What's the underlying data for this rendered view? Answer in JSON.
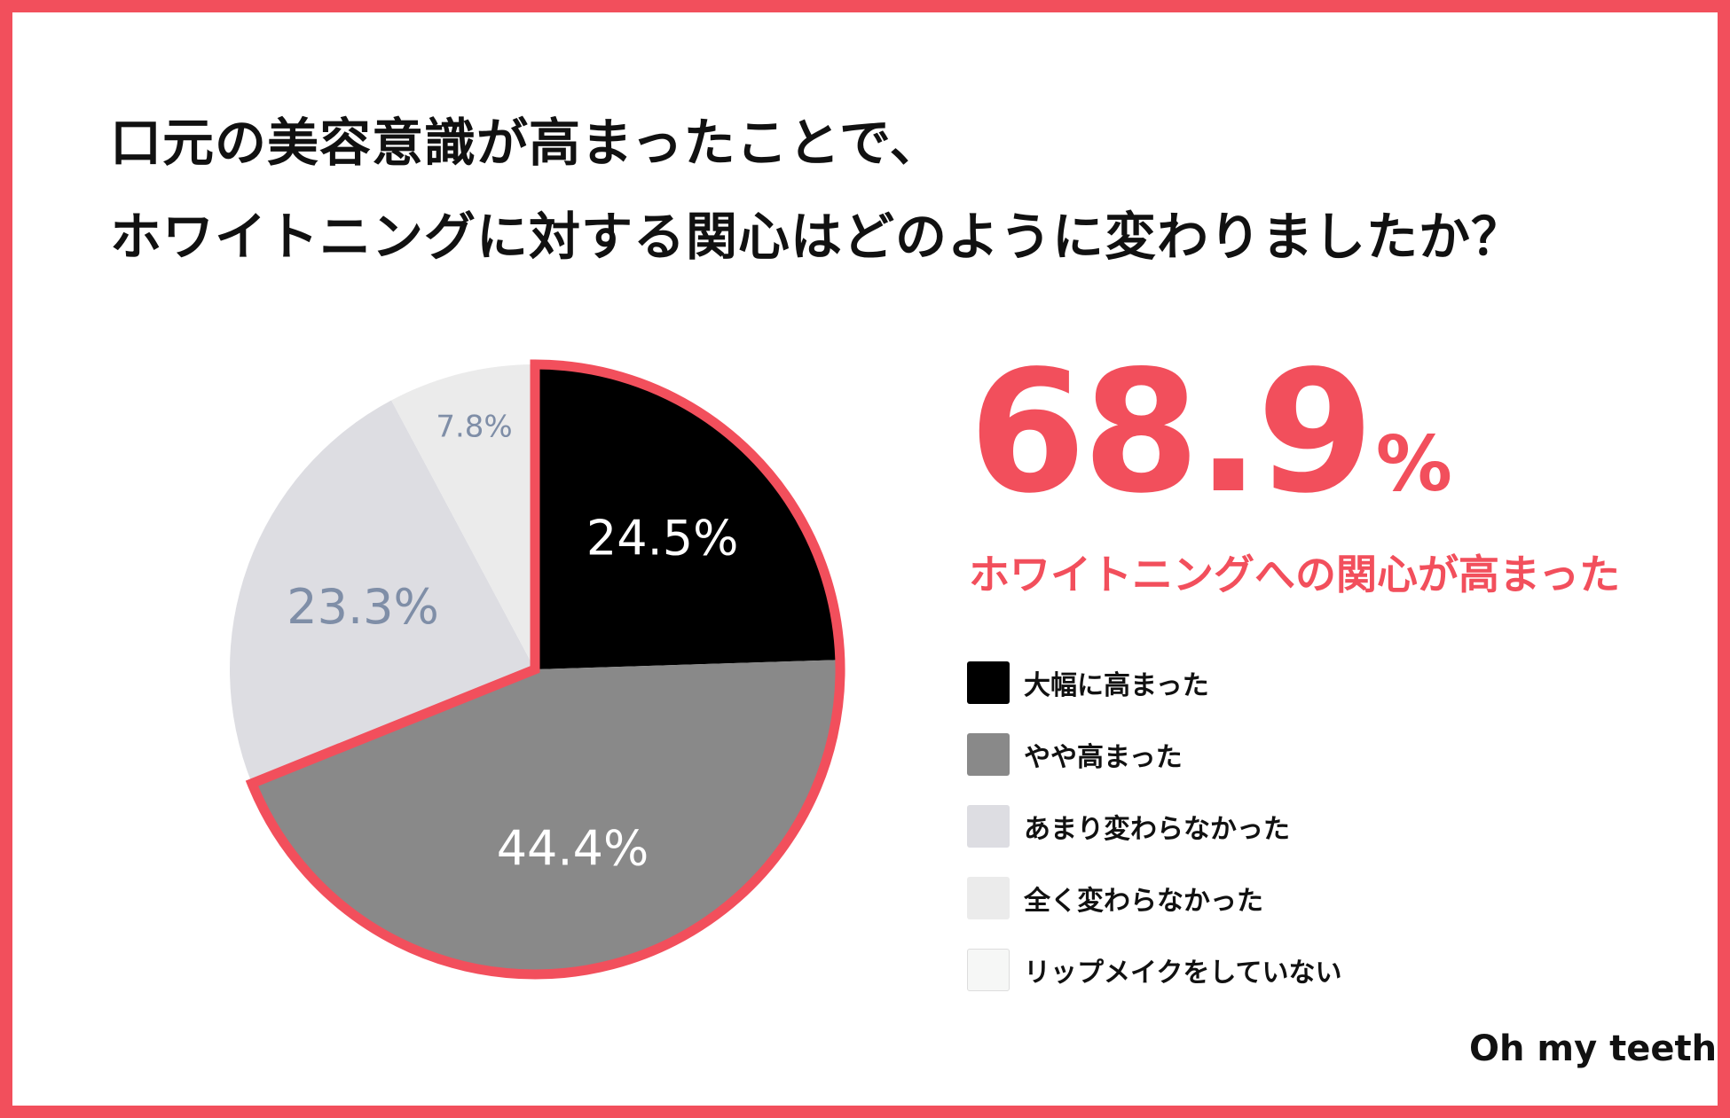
{
  "title_lines": [
    "口元の美容意識が高まったことで、",
    "ホワイトニングに対する関心はどのように変わりましたか？"
  ],
  "highlight": {
    "value": "68.9",
    "unit": "%",
    "caption": "ホワイトニングへの関心が高まった",
    "color": "#f24f5c"
  },
  "chart_data": {
    "type": "pie",
    "slices": [
      {
        "name": "大幅に高まった",
        "value": 24.5,
        "label": "24.5%",
        "color": "#000000",
        "label_color": "#ffffff",
        "highlighted": true
      },
      {
        "name": "やや高まった",
        "value": 44.4,
        "label": "44.4%",
        "color": "#898989",
        "label_color": "#ffffff",
        "highlighted": true
      },
      {
        "name": "あまり変わらなかった",
        "value": 23.3,
        "label": "23.3%",
        "color": "#dddde2",
        "label_color": "#7f8ea7",
        "highlighted": false
      },
      {
        "name": "全く変わらなかった",
        "value": 7.8,
        "label": "7.8%",
        "color": "#ebebeb",
        "label_color": "#7f8ea7",
        "highlighted": false
      },
      {
        "name": "リップメイクをしていない",
        "value": 0,
        "label": "",
        "color": "#f6f7f6",
        "label_color": "#7f8ea7",
        "highlighted": false
      }
    ],
    "start_angle": "12 o'clock",
    "direction": "clockwise",
    "legend_position": "right",
    "highlight_outline_color": "#f24f5c"
  },
  "brand": "Oh my teeth"
}
